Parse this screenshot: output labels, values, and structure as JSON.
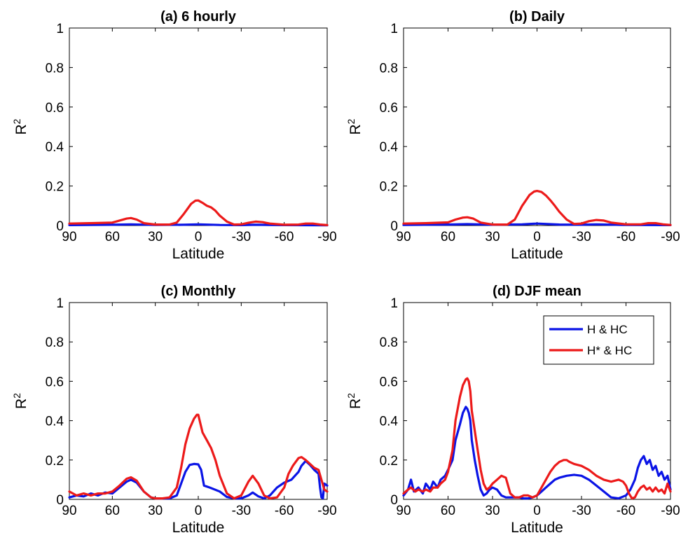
{
  "colors": {
    "blue": "#0a14e6",
    "red": "#ec1a1a"
  },
  "chart_data": [
    {
      "type": "line",
      "title": "(a) 6 hourly",
      "xlabel": "Latitude",
      "ylabel": "R2",
      "xlim": [
        90,
        -90
      ],
      "ylim": [
        0,
        1
      ],
      "xticks": [
        90,
        60,
        30,
        0,
        -30,
        -60,
        -90
      ],
      "xticklabels": [
        "90",
        "60",
        "30",
        "0",
        "-30",
        "-60",
        "-90"
      ],
      "yticks": [
        0,
        0.2,
        0.4,
        0.6,
        0.8,
        1
      ],
      "yticklabels": [
        "0",
        "0.2",
        "0.4",
        "0.6",
        "0.8",
        "1"
      ],
      "grid": false,
      "series": [
        {
          "color": "#0a14e6",
          "x": [
            90,
            60,
            47,
            30,
            10,
            0,
            -15,
            -30,
            -40,
            -60,
            -90
          ],
          "y": [
            0.002,
            0.004,
            0.006,
            0.003,
            0.004,
            0.006,
            0.003,
            0.002,
            0.004,
            0.002,
            0.001
          ]
        },
        {
          "color": "#ec1a1a",
          "x": [
            90,
            75,
            60,
            55,
            50,
            47,
            43,
            38,
            30,
            20,
            15,
            10,
            5,
            2,
            0,
            -3,
            -6,
            -9,
            -12,
            -15,
            -20,
            -25,
            -30,
            -35,
            -40,
            -45,
            -50,
            -60,
            -70,
            -75,
            -80,
            -85,
            -90
          ],
          "y": [
            0.01,
            0.012,
            0.015,
            0.025,
            0.035,
            0.038,
            0.03,
            0.012,
            0.005,
            0.005,
            0.015,
            0.06,
            0.11,
            0.126,
            0.127,
            0.115,
            0.1,
            0.092,
            0.075,
            0.05,
            0.02,
            0.005,
            0.006,
            0.014,
            0.02,
            0.017,
            0.01,
            0.004,
            0.005,
            0.01,
            0.01,
            0.005,
            0.002
          ]
        }
      ]
    },
    {
      "type": "line",
      "title": "(b) Daily",
      "xlabel": "Latitude",
      "ylabel": "R2",
      "xlim": [
        90,
        -90
      ],
      "ylim": [
        0,
        1
      ],
      "xticks": [
        90,
        60,
        30,
        0,
        -30,
        -60,
        -90
      ],
      "xticklabels": [
        "90",
        "60",
        "30",
        "0",
        "-30",
        "-60",
        "-90"
      ],
      "yticks": [
        0,
        0.2,
        0.4,
        0.6,
        0.8,
        1
      ],
      "yticklabels": [
        "0",
        "0.2",
        "0.4",
        "0.6",
        "0.8",
        "1"
      ],
      "grid": false,
      "series": [
        {
          "color": "#0a14e6",
          "x": [
            90,
            60,
            47,
            30,
            10,
            0,
            -15,
            -30,
            -40,
            -60,
            -90
          ],
          "y": [
            0.003,
            0.005,
            0.007,
            0.004,
            0.006,
            0.01,
            0.005,
            0.004,
            0.006,
            0.003,
            0.002
          ]
        },
        {
          "color": "#ec1a1a",
          "x": [
            90,
            75,
            60,
            55,
            50,
            47,
            43,
            38,
            30,
            20,
            15,
            10,
            5,
            2,
            0,
            -3,
            -6,
            -9,
            -12,
            -15,
            -20,
            -25,
            -30,
            -35,
            -40,
            -45,
            -50,
            -60,
            -70,
            -75,
            -80,
            -85,
            -90
          ],
          "y": [
            0.01,
            0.012,
            0.016,
            0.03,
            0.04,
            0.042,
            0.035,
            0.015,
            0.005,
            0.005,
            0.03,
            0.1,
            0.155,
            0.172,
            0.175,
            0.17,
            0.152,
            0.128,
            0.1,
            0.07,
            0.03,
            0.008,
            0.01,
            0.022,
            0.028,
            0.025,
            0.015,
            0.006,
            0.006,
            0.012,
            0.012,
            0.006,
            0.003
          ]
        }
      ]
    },
    {
      "type": "line",
      "title": "(c) Monthly",
      "xlabel": "Latitude",
      "ylabel": "R2",
      "xlim": [
        90,
        -90
      ],
      "ylim": [
        0,
        1
      ],
      "xticks": [
        90,
        60,
        30,
        0,
        -30,
        -60,
        -90
      ],
      "xticklabels": [
        "90",
        "60",
        "30",
        "0",
        "-30",
        "-60",
        "-90"
      ],
      "yticks": [
        0,
        0.2,
        0.4,
        0.6,
        0.8,
        1
      ],
      "yticklabels": [
        "0",
        "0.2",
        "0.4",
        "0.6",
        "0.8",
        "1"
      ],
      "grid": false,
      "series": [
        {
          "color": "#0a14e6",
          "x": [
            90,
            85,
            80,
            75,
            70,
            65,
            60,
            55,
            50,
            47,
            43,
            38,
            33,
            30,
            25,
            20,
            15,
            12,
            9,
            6,
            3,
            0,
            -2,
            -4,
            -8,
            -15,
            -20,
            -25,
            -30,
            -35,
            -38,
            -42,
            -46,
            -50,
            -55,
            -60,
            -65,
            -70,
            -72,
            -75,
            -78,
            -81,
            -84,
            -85,
            -86,
            -87,
            -88,
            -90
          ],
          "y": [
            0.01,
            0.02,
            0.015,
            0.03,
            0.02,
            0.035,
            0.03,
            0.06,
            0.09,
            0.1,
            0.085,
            0.04,
            0.01,
            0.005,
            0.005,
            0.005,
            0.02,
            0.08,
            0.14,
            0.175,
            0.18,
            0.178,
            0.15,
            0.07,
            0.06,
            0.04,
            0.012,
            0.005,
            0.005,
            0.02,
            0.035,
            0.015,
            0.005,
            0.02,
            0.06,
            0.085,
            0.1,
            0.14,
            0.17,
            0.195,
            0.175,
            0.15,
            0.13,
            0.06,
            0.01,
            0.005,
            0.08,
            0.07
          ]
        },
        {
          "color": "#ec1a1a",
          "x": [
            90,
            85,
            80,
            75,
            70,
            65,
            60,
            55,
            50,
            47,
            43,
            38,
            33,
            30,
            25,
            20,
            15,
            12,
            9,
            6,
            3,
            1,
            0,
            -3,
            -6,
            -9,
            -12,
            -15,
            -20,
            -25,
            -30,
            -35,
            -38,
            -42,
            -46,
            -50,
            -55,
            -60,
            -63,
            -66,
            -70,
            -72,
            -75,
            -78,
            -81,
            -84,
            -86,
            -88,
            -90
          ],
          "y": [
            0.04,
            0.02,
            0.03,
            0.02,
            0.03,
            0.03,
            0.04,
            0.07,
            0.105,
            0.112,
            0.095,
            0.04,
            0.01,
            0.005,
            0.005,
            0.01,
            0.06,
            0.16,
            0.28,
            0.36,
            0.41,
            0.43,
            0.43,
            0.34,
            0.3,
            0.26,
            0.2,
            0.12,
            0.03,
            0.005,
            0.02,
            0.09,
            0.12,
            0.08,
            0.02,
            0.005,
            0.01,
            0.06,
            0.13,
            0.17,
            0.21,
            0.215,
            0.2,
            0.18,
            0.16,
            0.15,
            0.1,
            0.05,
            0.04
          ]
        }
      ]
    },
    {
      "type": "line",
      "title": "(d) DJF mean",
      "xlabel": "Latitude",
      "ylabel": "R2",
      "xlim": [
        90,
        -90
      ],
      "ylim": [
        0,
        1
      ],
      "xticks": [
        90,
        60,
        30,
        0,
        -30,
        -60,
        -90
      ],
      "xticklabels": [
        "90",
        "60",
        "30",
        "0",
        "-30",
        "-60",
        "-90"
      ],
      "yticks": [
        0,
        0.2,
        0.4,
        0.6,
        0.8,
        1
      ],
      "yticklabels": [
        "0",
        "0.2",
        "0.4",
        "0.6",
        "0.8",
        "1"
      ],
      "grid": false,
      "legend": {
        "position": "top-right",
        "entries": [
          "H & HC",
          "H* & HC"
        ]
      },
      "series": [
        {
          "name": "H & HC",
          "color": "#0a14e6",
          "x": [
            90,
            87,
            85,
            83,
            80,
            77,
            75,
            72,
            70,
            67,
            65,
            62,
            60,
            57,
            55,
            52,
            50,
            48,
            47,
            46,
            45,
            44,
            42,
            40,
            38,
            36,
            34,
            32,
            30,
            27,
            24,
            21,
            18,
            15,
            12,
            9,
            6,
            3,
            0,
            -3,
            -6,
            -9,
            -12,
            -15,
            -20,
            -25,
            -30,
            -35,
            -40,
            -45,
            -50,
            -55,
            -60,
            -63,
            -66,
            -68,
            -70,
            -72,
            -74,
            -76,
            -78,
            -80,
            -82,
            -84,
            -86,
            -88,
            -90
          ],
          "y": [
            0.02,
            0.05,
            0.1,
            0.04,
            0.06,
            0.03,
            0.08,
            0.05,
            0.09,
            0.06,
            0.1,
            0.12,
            0.15,
            0.2,
            0.3,
            0.38,
            0.44,
            0.47,
            0.46,
            0.44,
            0.4,
            0.3,
            0.2,
            0.12,
            0.05,
            0.02,
            0.03,
            0.05,
            0.06,
            0.05,
            0.02,
            0.01,
            0.01,
            0.01,
            0.01,
            0.005,
            0.005,
            0.01,
            0.02,
            0.04,
            0.06,
            0.08,
            0.1,
            0.11,
            0.12,
            0.125,
            0.12,
            0.1,
            0.07,
            0.04,
            0.01,
            0.005,
            0.02,
            0.05,
            0.1,
            0.16,
            0.2,
            0.22,
            0.18,
            0.2,
            0.15,
            0.17,
            0.12,
            0.14,
            0.1,
            0.12,
            0.05
          ]
        },
        {
          "name": "H* & HC",
          "color": "#ec1a1a",
          "x": [
            90,
            87,
            85,
            82,
            80,
            77,
            75,
            72,
            70,
            67,
            65,
            62,
            60,
            57,
            55,
            52,
            50,
            48,
            47,
            46,
            45,
            44,
            42,
            40,
            38,
            36,
            34,
            32,
            30,
            27,
            24,
            21,
            18,
            15,
            12,
            9,
            6,
            3,
            0,
            -3,
            -6,
            -9,
            -12,
            -15,
            -18,
            -20,
            -22,
            -25,
            -30,
            -35,
            -40,
            -45,
            -50,
            -55,
            -58,
            -60,
            -62,
            -64,
            -66,
            -68,
            -70,
            -72,
            -74,
            -76,
            -78,
            -80,
            -82,
            -84,
            -86,
            -88,
            -90
          ],
          "y": [
            0.03,
            0.05,
            0.06,
            0.04,
            0.05,
            0.04,
            0.05,
            0.04,
            0.06,
            0.06,
            0.08,
            0.1,
            0.14,
            0.25,
            0.4,
            0.52,
            0.58,
            0.61,
            0.615,
            0.6,
            0.55,
            0.45,
            0.35,
            0.25,
            0.15,
            0.08,
            0.05,
            0.06,
            0.08,
            0.1,
            0.12,
            0.11,
            0.03,
            0.01,
            0.01,
            0.02,
            0.02,
            0.01,
            0.02,
            0.06,
            0.1,
            0.14,
            0.17,
            0.19,
            0.2,
            0.2,
            0.19,
            0.18,
            0.17,
            0.15,
            0.12,
            0.1,
            0.09,
            0.1,
            0.09,
            0.07,
            0.03,
            0.005,
            0.01,
            0.04,
            0.06,
            0.07,
            0.05,
            0.06,
            0.04,
            0.06,
            0.04,
            0.05,
            0.03,
            0.08,
            0.04
          ]
        }
      ]
    }
  ]
}
